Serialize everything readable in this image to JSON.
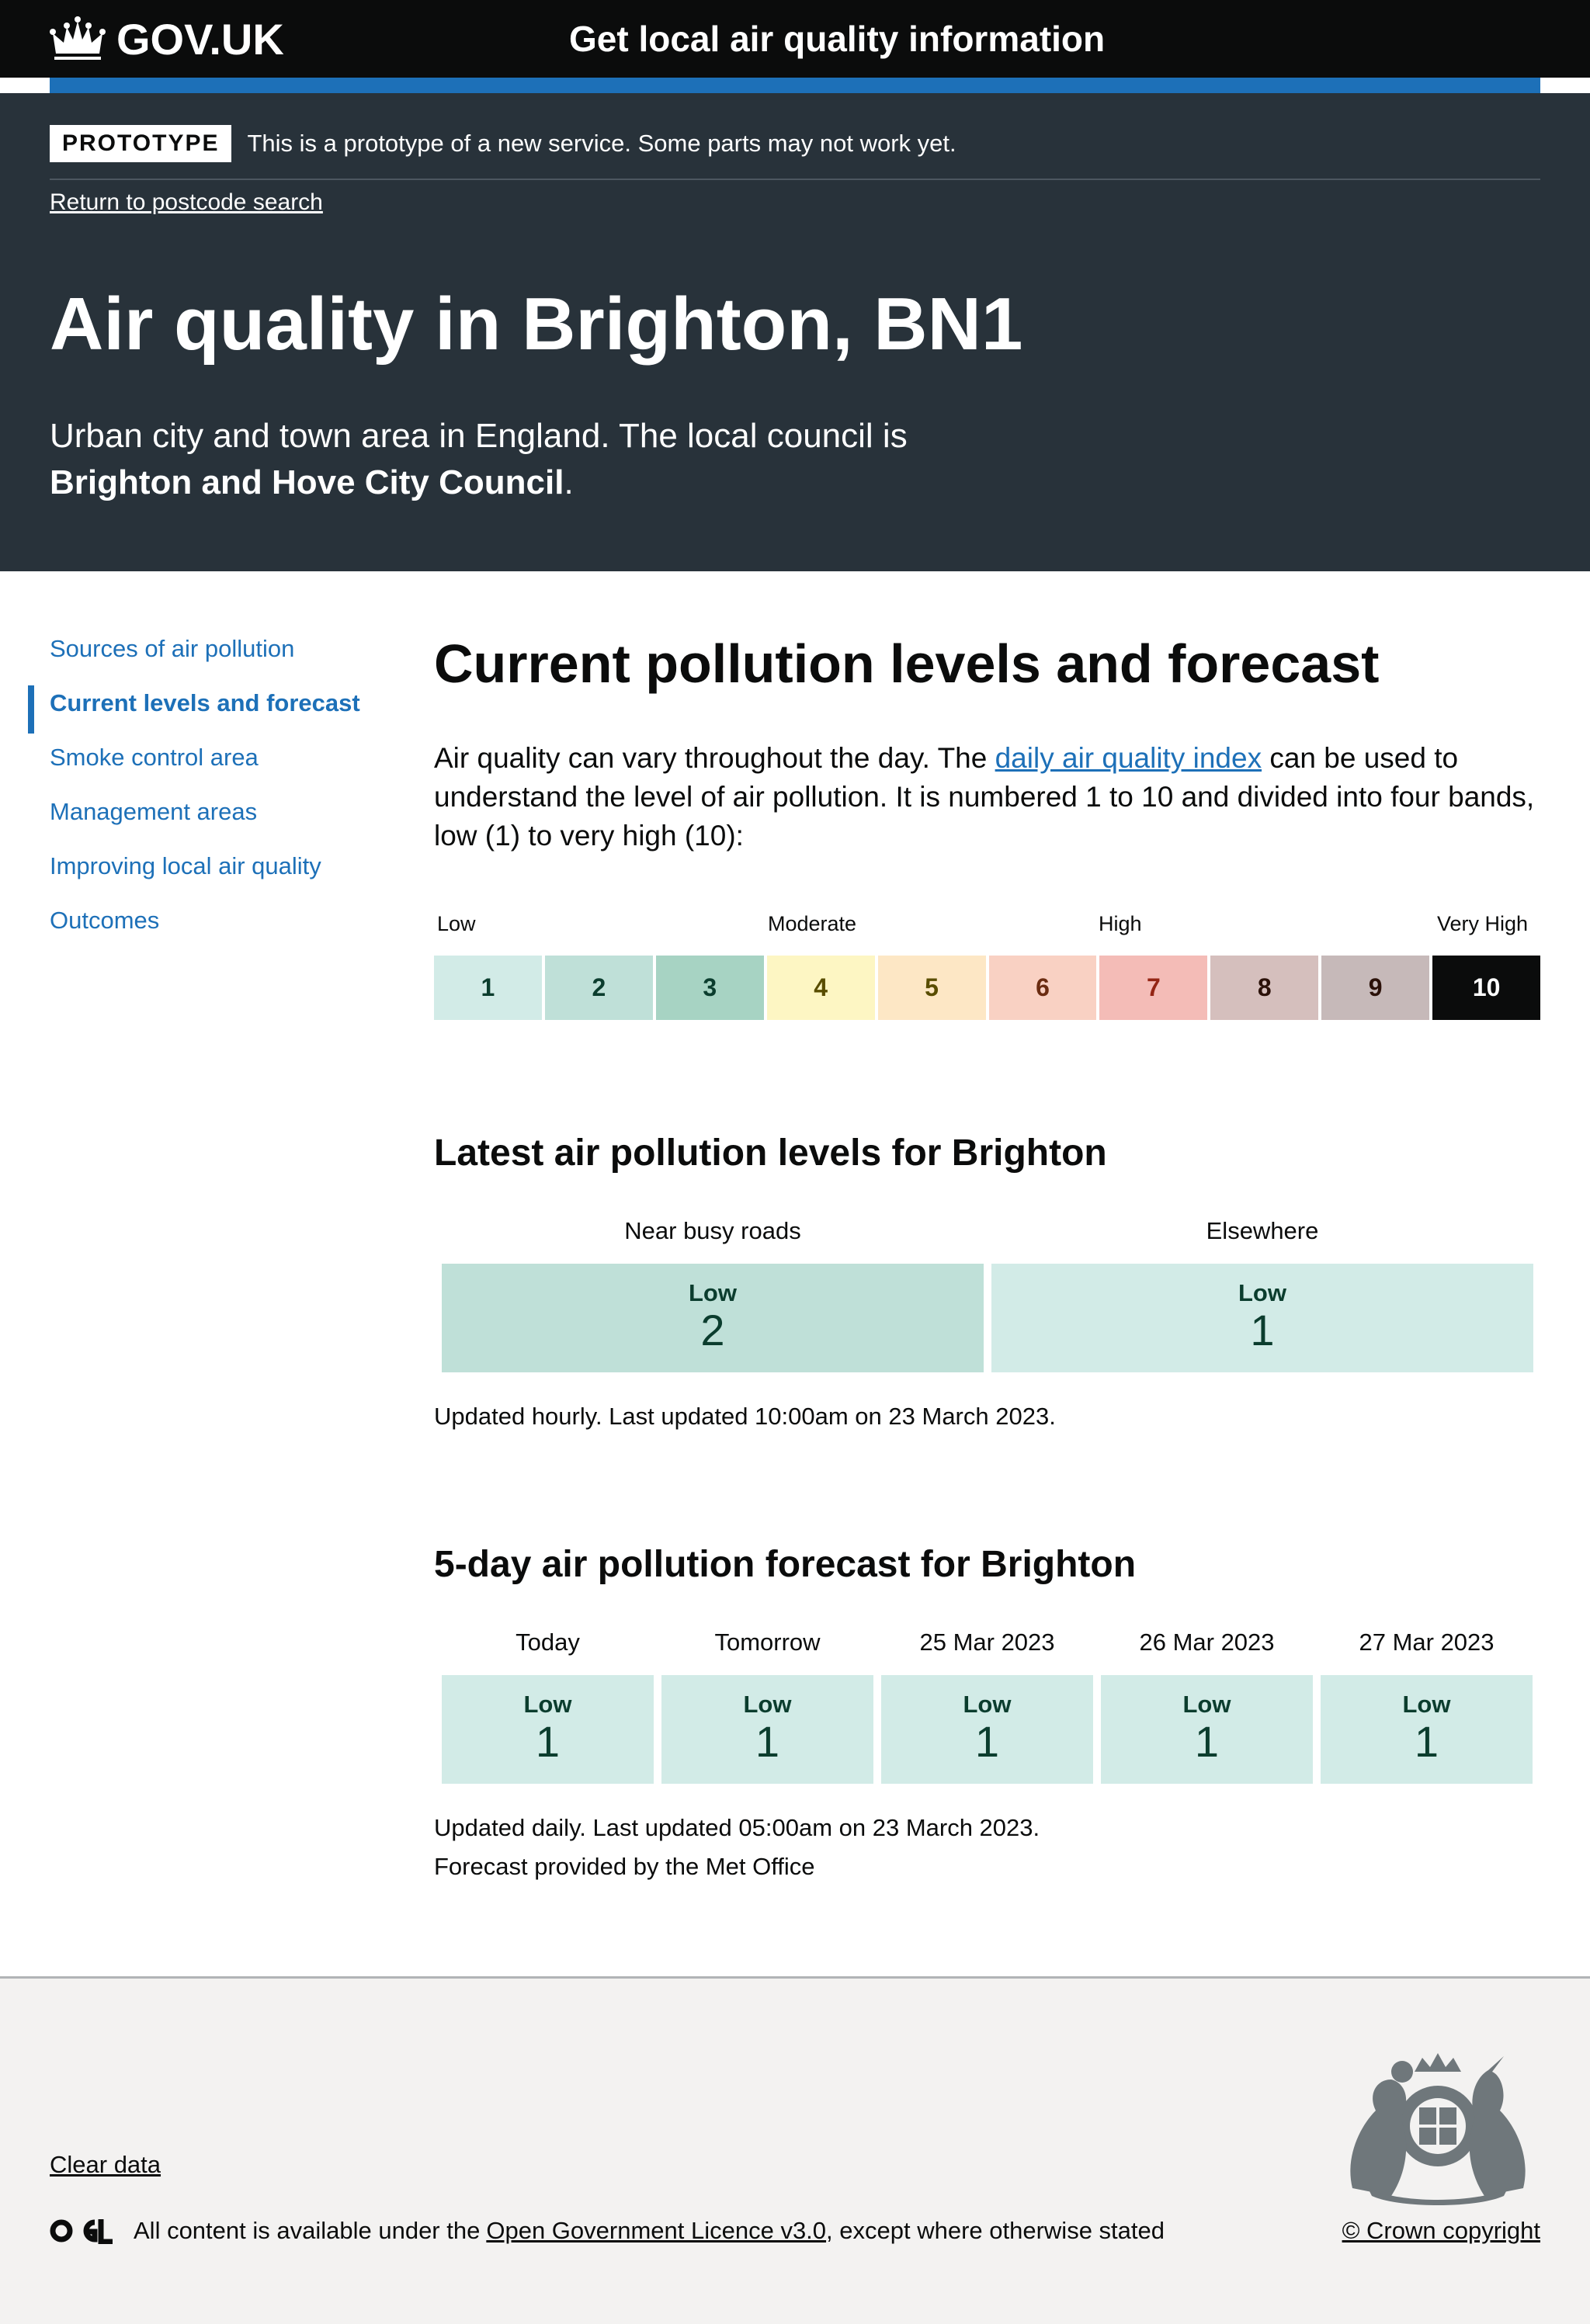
{
  "header": {
    "logo_text": "GOV.UK",
    "service_name": "Get local air quality information"
  },
  "phase_banner": {
    "tag": "PROTOTYPE",
    "text": "This is a prototype of a new service. Some parts may not work yet."
  },
  "hero": {
    "back_link": "Return to postcode search",
    "title": "Air quality in Brighton, BN1",
    "desc_prefix": "Urban city and town area in England. The local council is",
    "council": "Brighton and Hove City Council",
    "desc_suffix": "."
  },
  "sidenav": {
    "items": [
      {
        "label": "Sources of air pollution",
        "active": false
      },
      {
        "label": "Current levels and forecast",
        "active": true
      },
      {
        "label": "Smoke control area",
        "active": false
      },
      {
        "label": "Management areas",
        "active": false
      },
      {
        "label": "Improving local air quality",
        "active": false
      },
      {
        "label": "Outcomes",
        "active": false
      }
    ]
  },
  "main": {
    "title": "Current pollution levels and forecast",
    "intro_before": "Air quality can vary throughout the day. The",
    "intro_link": "daily air quality index",
    "intro_after": "can be used to understand the level of air pollution. It is numbered 1 to 10 and divided into four bands, low (1) to very high (10):"
  },
  "index_scale": {
    "bands": [
      "Low",
      "Moderate",
      "High",
      "Very High"
    ],
    "cells": [
      {
        "value": "1",
        "bg": "#d2ebe7",
        "fg": "#0b3d2e"
      },
      {
        "value": "2",
        "bg": "#bfe0d8",
        "fg": "#0b3d2e"
      },
      {
        "value": "3",
        "bg": "#a7d3c3",
        "fg": "#0b3d2e"
      },
      {
        "value": "4",
        "bg": "#fdf6c3",
        "fg": "#594d00"
      },
      {
        "value": "5",
        "bg": "#fde7c5",
        "fg": "#594d00"
      },
      {
        "value": "6",
        "bg": "#f9d1c3",
        "fg": "#6b2c11"
      },
      {
        "value": "7",
        "bg": "#f4bcb7",
        "fg": "#942514"
      },
      {
        "value": "8",
        "bg": "#d5bfbd",
        "fg": "#2b1109"
      },
      {
        "value": "9",
        "bg": "#c6b9b9",
        "fg": "#2b1109"
      },
      {
        "value": "10",
        "bg": "#0b0c0c",
        "fg": "#ffffff"
      }
    ]
  },
  "latest": {
    "title": "Latest air pollution levels for Brighton",
    "columns": [
      {
        "heading": "Near busy roads",
        "band": "Low",
        "value": "2",
        "bg": "#bfe0d8"
      },
      {
        "heading": "Elsewhere",
        "band": "Low",
        "value": "1",
        "bg": "#d2ebe7"
      }
    ],
    "note": "Updated hourly. Last updated 10:00am on 23 March 2023."
  },
  "forecast": {
    "title": "5-day air pollution forecast for Brighton",
    "days": [
      {
        "heading": "Today",
        "band": "Low",
        "value": "1"
      },
      {
        "heading": "Tomorrow",
        "band": "Low",
        "value": "1"
      },
      {
        "heading": "25 Mar 2023",
        "band": "Low",
        "value": "1"
      },
      {
        "heading": "26 Mar 2023",
        "band": "Low",
        "value": "1"
      },
      {
        "heading": "27 Mar 2023",
        "band": "Low",
        "value": "1"
      }
    ],
    "note_1": "Updated daily. Last updated 05:00am on 23 March 2023.",
    "note_2": "Forecast provided by the Met Office"
  },
  "footer": {
    "clear_data": "Clear data",
    "licence_prefix": "All content is available under the",
    "licence_link": "Open Government Licence v3.0",
    "licence_suffix": ", except where otherwise stated",
    "copyright": "© Crown copyright"
  }
}
